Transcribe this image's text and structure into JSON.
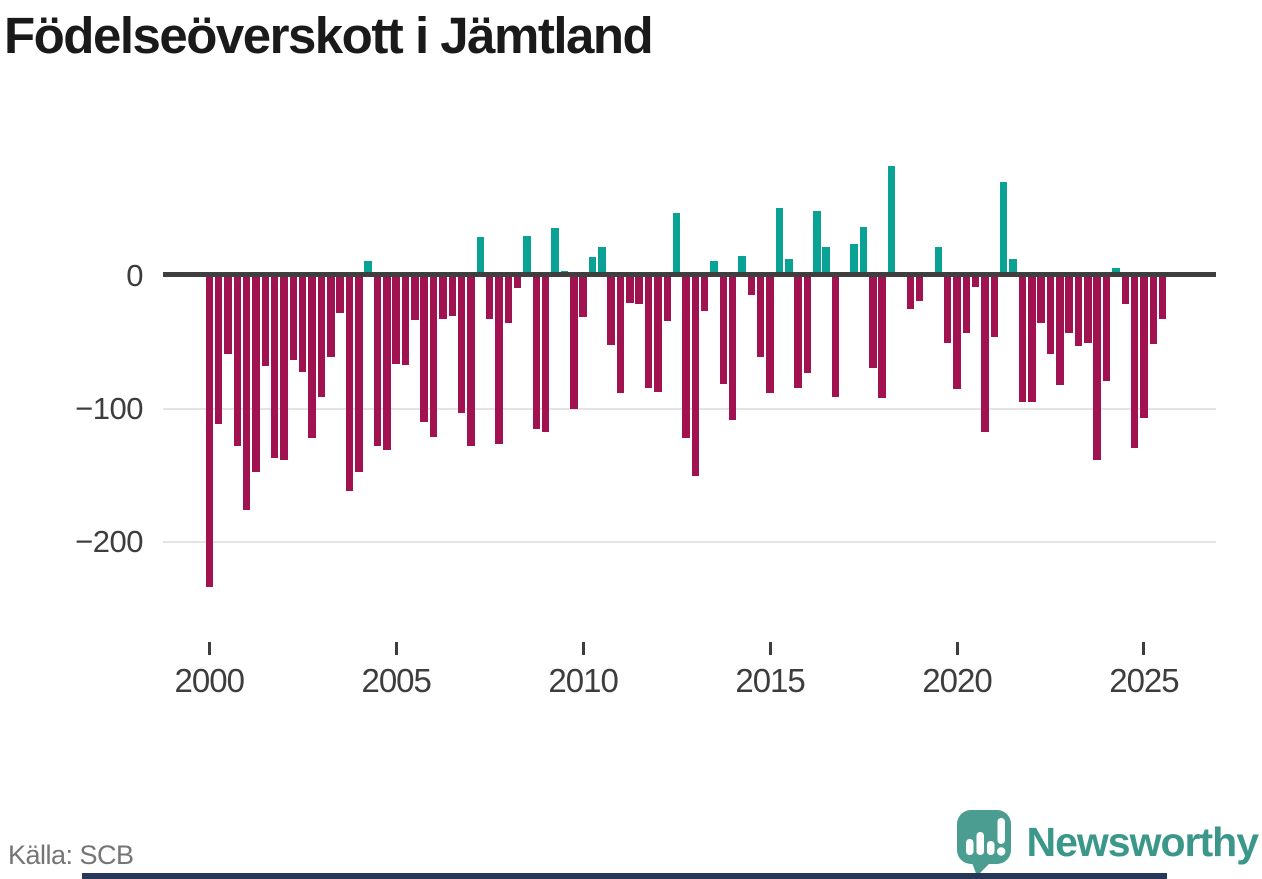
{
  "title": "Födelseöverskott i Jämtland",
  "source": "Källa: SCB",
  "brand": {
    "name": "Newsworthy"
  },
  "colors": {
    "positive": "#0aa295",
    "negative": "#a01250",
    "axis": "#3f3f3f",
    "grid": "#e4e4e4",
    "tick_label": "#3d3d3d",
    "title_text": "#1a1a1a",
    "source_text": "#757575",
    "brand_teal": "#3a978a",
    "logo_mark": "#4a9d90",
    "bottom_strip": "#263759"
  },
  "chart_data": {
    "type": "bar",
    "title": "Födelseöverskott i Jämtland",
    "xlabel": "",
    "ylabel": "",
    "frequency": "quarterly",
    "start_period": "2000 Q1",
    "end_period": "2025 Q3",
    "ylim": [
      -245,
      95
    ],
    "grid": "horizontal",
    "y_ticks": [
      {
        "label": "0",
        "value": 0
      },
      {
        "label": "−100",
        "value": -100
      },
      {
        "label": "−200",
        "value": -200
      }
    ],
    "x_ticks": [
      {
        "label": "2000",
        "year": 2000
      },
      {
        "label": "2005",
        "year": 2005
      },
      {
        "label": "2010",
        "year": 2010
      },
      {
        "label": "2015",
        "year": 2015
      },
      {
        "label": "2020",
        "year": 2020
      },
      {
        "label": "2025",
        "year": 2025
      }
    ],
    "values": [
      -234,
      -111,
      -59,
      -128,
      -176,
      -147,
      -68,
      -137,
      -138,
      -63,
      -72,
      -122,
      -91,
      -61,
      -28,
      -162,
      -147,
      11,
      -128,
      -131,
      -66,
      -67,
      -33,
      -110,
      -121,
      -32,
      -30,
      -103,
      -128,
      29,
      -32,
      -126,
      -35,
      -9,
      30,
      -115,
      -117,
      36,
      4,
      -100,
      -31,
      14,
      22,
      -52,
      -88,
      -20,
      -21,
      -84,
      -87,
      -34,
      47,
      -122,
      -150,
      -26,
      11,
      -81,
      -108,
      15,
      -14,
      -61,
      -88,
      51,
      13,
      -84,
      -73,
      49,
      22,
      -91,
      0,
      24,
      37,
      -69,
      -92,
      83,
      3,
      -25,
      -19,
      0,
      22,
      -50,
      -85,
      -43,
      -8,
      -117,
      -46,
      71,
      13,
      -95,
      -95,
      -35,
      -59,
      -82,
      -43,
      -53,
      -50,
      -138,
      -79,
      6,
      -21,
      -129,
      -107,
      -51,
      -32
    ],
    "series_colors": {
      "positive": "#0aa295",
      "negative": "#a01250"
    }
  }
}
